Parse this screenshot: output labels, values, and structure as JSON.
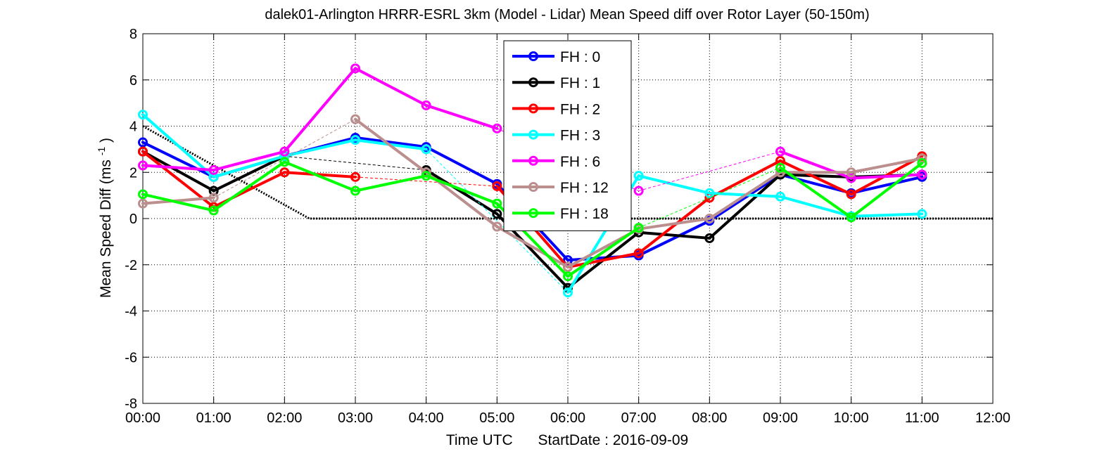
{
  "chart_data": {
    "type": "line",
    "title": "dalek01-Arlington HRRR-ESRL 3km (Model - Lidar) Mean Speed diff over Rotor Layer (50-150m)",
    "xlabel_main": "Time UTC",
    "xlabel_date": "StartDate : 2016-09-09",
    "ylabel_main": "Mean Speed Diff (ms",
    "ylabel_sup": "-1",
    "ylabel_end": ")",
    "ylim": [
      -8,
      8
    ],
    "xlim": [
      0,
      12
    ],
    "yticks": [
      -8,
      -6,
      -4,
      -2,
      0,
      2,
      4,
      6,
      8
    ],
    "xticks": [
      0,
      1,
      2,
      3,
      4,
      5,
      6,
      7,
      8,
      9,
      10,
      11,
      12
    ],
    "xtick_labels": [
      "00:00",
      "01:00",
      "02:00",
      "03:00",
      "04:00",
      "05:00",
      "06:00",
      "07:00",
      "08:00",
      "09:00",
      "10:00",
      "11:00",
      "12:00"
    ],
    "grid": "dotted",
    "legend_position": "top-center",
    "series": [
      {
        "name": "FH : 0",
        "color": "#0000ff",
        "x": [
          0,
          1,
          2,
          3,
          4,
          5,
          6,
          7,
          8,
          9,
          10,
          11
        ],
        "y": [
          3.3,
          1.8,
          2.7,
          3.5,
          3.1,
          1.5,
          -1.8,
          -1.6,
          -0.1,
          1.9,
          1.1,
          1.8
        ]
      },
      {
        "name": "FH : 1",
        "color": "#000000",
        "x": [
          0,
          1,
          2,
          3,
          4,
          5,
          6,
          7,
          8,
          9,
          10,
          11
        ],
        "y": [
          2.9,
          1.2,
          2.7,
          null,
          2.1,
          0.2,
          -3.0,
          -0.6,
          -0.85,
          1.9,
          1.8,
          1.9
        ]
      },
      {
        "name": "FH : 2",
        "color": "#ff0000",
        "x": [
          0,
          1,
          2,
          3,
          4,
          5,
          6,
          7,
          8,
          9,
          10,
          11
        ],
        "y": [
          2.9,
          0.5,
          2.0,
          1.8,
          null,
          1.4,
          -2.1,
          -1.5,
          0.9,
          2.5,
          1.05,
          2.7
        ]
      },
      {
        "name": "FH : 3",
        "color": "#00ffff",
        "x": [
          0,
          1,
          2,
          3,
          4,
          5,
          6,
          7,
          8,
          9,
          10,
          11
        ],
        "y": [
          4.5,
          1.8,
          2.7,
          3.4,
          3.0,
          null,
          -3.2,
          1.85,
          1.1,
          0.95,
          0.1,
          0.2
        ]
      },
      {
        "name": "FH : 6",
        "color": "#ff00ff",
        "x": [
          0,
          1,
          2,
          3,
          4,
          5,
          6,
          7,
          8,
          9,
          10,
          11
        ],
        "y": [
          2.3,
          2.1,
          2.9,
          6.5,
          4.9,
          3.9,
          null,
          1.2,
          null,
          2.9,
          1.75,
          1.9
        ]
      },
      {
        "name": "FH : 12",
        "color": "#bc8f8f",
        "x": [
          0,
          1,
          2,
          3,
          4,
          5,
          6,
          7,
          8,
          9,
          10,
          11
        ],
        "y": [
          0.65,
          0.9,
          null,
          4.3,
          2.0,
          -0.35,
          -2.1,
          -0.45,
          0.0,
          2.0,
          2.0,
          2.6
        ]
      },
      {
        "name": "FH : 18",
        "color": "#00ff00",
        "x": [
          0,
          1,
          2,
          3,
          4,
          5,
          6,
          7,
          8,
          9,
          10,
          11
        ],
        "y": [
          1.05,
          0.35,
          2.45,
          1.2,
          1.85,
          0.65,
          -2.5,
          -0.4,
          null,
          2.2,
          0.05,
          2.4
        ]
      }
    ],
    "reference_line": {
      "color": "#000000",
      "style": "dotted",
      "x": [
        0,
        2.35,
        12
      ],
      "y": [
        4.0,
        0.0,
        0.0
      ]
    }
  }
}
